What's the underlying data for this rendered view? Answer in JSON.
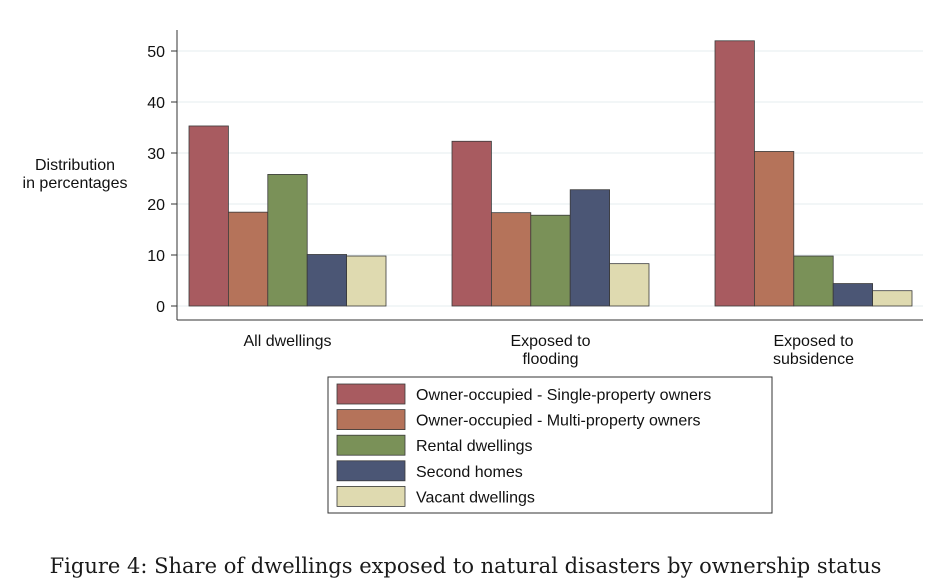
{
  "caption": "Figure 4: Share of dwellings exposed to natural disasters by ownership status",
  "chart_data": {
    "type": "bar",
    "title": "",
    "xlabel": "",
    "ylabel": "Distribution in percentages",
    "ylabel_lines": [
      "Distribution",
      "in percentages"
    ],
    "ylim": [
      0,
      55
    ],
    "yticks": [
      0,
      10,
      20,
      30,
      40,
      50
    ],
    "grid": true,
    "legend_position": "bottom",
    "categories": [
      "All dwellings",
      "Exposed to flooding",
      "Exposed to subsidence"
    ],
    "category_lines": [
      [
        "All dwellings"
      ],
      [
        "Exposed to",
        "flooding"
      ],
      [
        "Exposed to",
        "subsidence"
      ]
    ],
    "series": [
      {
        "name": "Owner-occupied - Single-property owners",
        "color": "#a85b60",
        "values": [
          35.3,
          32.3,
          52.0
        ]
      },
      {
        "name": "Owner-occupied - Multi-property owners",
        "color": "#b5735a",
        "values": [
          18.4,
          18.3,
          30.3
        ]
      },
      {
        "name": "Rental dwellings",
        "color": "#7a9158",
        "values": [
          25.8,
          17.8,
          9.8
        ]
      },
      {
        "name": "Second homes",
        "color": "#4b5675",
        "values": [
          10.1,
          22.8,
          4.4
        ]
      },
      {
        "name": "Vacant dwellings",
        "color": "#dfdab0",
        "values": [
          9.8,
          8.3,
          3.0
        ]
      }
    ]
  }
}
